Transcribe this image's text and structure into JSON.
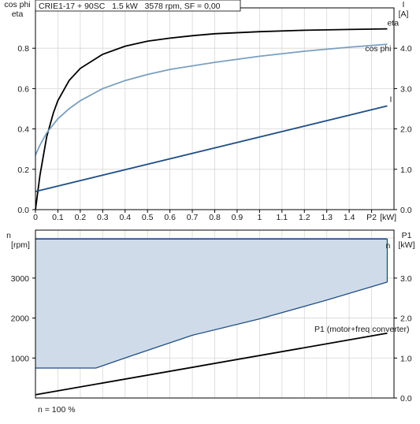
{
  "header_label": "CRIE1-17 + 90SC   1.5 kW   3578 rpm, SF = 0,00",
  "footer_note": "n = 100 %",
  "colors": {
    "eta": "#000000",
    "cos_phi": "#7a9fc0",
    "current": "#1f4e85",
    "speed": "#1f4e85",
    "speed_fill": "#cfdbe8",
    "power": "#000000"
  },
  "chart_data": [
    {
      "type": "line",
      "y_axis_label_lines": [
        "cos phi",
        "eta"
      ],
      "y2_axis_label_lines": [
        "I",
        "[A]"
      ],
      "xticks": [
        "0",
        "0.1",
        "0.2",
        "0.3",
        "0.4",
        "0.5",
        "0.6",
        "0.7",
        "0.8",
        "0.9",
        "1",
        "1.1",
        "1.2",
        "1.3",
        "1.4",
        "P2"
      ],
      "x_unit": "[kW]",
      "xlim": [
        0,
        1.6
      ],
      "ylim": [
        0,
        1.0
      ],
      "yticks": [
        "0.0",
        "0.2",
        "0.4",
        "0.6",
        "0.8"
      ],
      "y2lim": [
        0,
        5.0
      ],
      "y2ticks": [
        "0.0",
        "1.0",
        "2.0",
        "3.0",
        "4.0"
      ],
      "grid": true,
      "series": [
        {
          "name": "eta",
          "axis": "left",
          "x": [
            0,
            0.02,
            0.05,
            0.08,
            0.1,
            0.15,
            0.2,
            0.3,
            0.4,
            0.5,
            0.6,
            0.7,
            0.8,
            1.0,
            1.2,
            1.4,
            1.57
          ],
          "y": [
            0,
            0.17,
            0.36,
            0.48,
            0.54,
            0.64,
            0.7,
            0.77,
            0.81,
            0.835,
            0.85,
            0.862,
            0.872,
            0.882,
            0.889,
            0.893,
            0.896
          ]
        },
        {
          "name": "cos phi",
          "axis": "left",
          "x": [
            0,
            0.02,
            0.05,
            0.1,
            0.15,
            0.2,
            0.3,
            0.4,
            0.5,
            0.6,
            0.8,
            1.0,
            1.2,
            1.4,
            1.57
          ],
          "y": [
            0.27,
            0.32,
            0.38,
            0.45,
            0.5,
            0.54,
            0.6,
            0.64,
            0.67,
            0.695,
            0.73,
            0.76,
            0.785,
            0.805,
            0.82
          ]
        },
        {
          "name": "I",
          "axis": "right",
          "x": [
            0,
            1.57
          ],
          "y": [
            0.45,
            2.57
          ]
        }
      ]
    },
    {
      "type": "area",
      "y_axis_label_lines": [
        "n",
        "[rpm]"
      ],
      "y2_axis_label_lines": [
        "P1",
        "[kW]"
      ],
      "xlim": [
        0,
        1.6
      ],
      "ylim": [
        0,
        4200
      ],
      "yticks": [
        "1000",
        "2000",
        "3000"
      ],
      "y2lim": [
        0,
        4.2
      ],
      "y2ticks": [
        "0.0",
        "1.0",
        "2.0",
        "3.0"
      ],
      "grid": true,
      "series": [
        {
          "name": "n",
          "axis": "left",
          "upper_x": [
            0,
            1.57
          ],
          "upper_y": [
            3980,
            3980
          ],
          "lower_x": [
            0,
            0.27,
            0.42,
            0.7,
            1.0,
            1.3,
            1.57
          ],
          "lower_y": [
            750,
            750,
            1040,
            1570,
            1980,
            2450,
            2900
          ]
        },
        {
          "name": "P1 (motor+freq converter)",
          "axis": "right",
          "x": [
            0,
            1.57
          ],
          "y": [
            0.08,
            1.62
          ]
        }
      ]
    }
  ]
}
